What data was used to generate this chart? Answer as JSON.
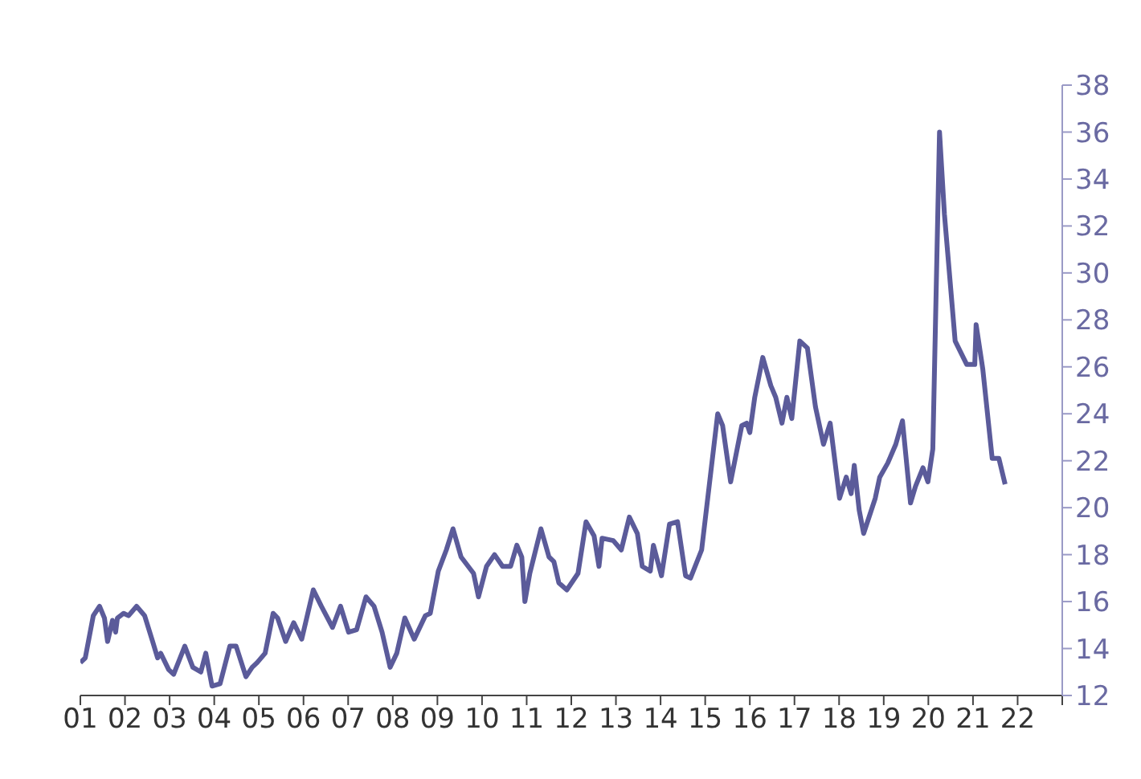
{
  "chart_data": {
    "type": "line",
    "color": "#5b5b9a",
    "x": [
      2001.0,
      2001.11,
      2001.29,
      2001.43,
      2001.54,
      2001.61,
      2001.72,
      2001.79,
      2001.83,
      2001.97,
      2002.08,
      2002.26,
      2002.44,
      2002.62,
      2002.73,
      2002.8,
      2002.98,
      2003.09,
      2003.34,
      2003.52,
      2003.7,
      2003.81,
      2003.95,
      2004.13,
      2004.35,
      2004.49,
      2004.71,
      2004.85,
      2004.96,
      2005.14,
      2005.32,
      2005.42,
      2005.6,
      2005.78,
      2005.96,
      2006.22,
      2006.4,
      2006.65,
      2006.83,
      2007.01,
      2007.19,
      2007.4,
      2007.58,
      2007.76,
      2007.94,
      2008.09,
      2008.27,
      2008.48,
      2008.73,
      2008.84,
      2009.02,
      2009.2,
      2009.35,
      2009.53,
      2009.81,
      2009.92,
      2010.1,
      2010.28,
      2010.46,
      2010.64,
      2010.78,
      2010.89,
      2010.96,
      2011.07,
      2011.32,
      2011.5,
      2011.61,
      2011.72,
      2011.9,
      2012.15,
      2012.33,
      2012.51,
      2012.62,
      2012.69,
      2012.94,
      2013.12,
      2013.3,
      2013.48,
      2013.59,
      2013.77,
      2013.84,
      2014.02,
      2014.2,
      2014.38,
      2014.56,
      2014.67,
      2014.92,
      2015.28,
      2015.39,
      2015.57,
      2015.82,
      2015.93,
      2016.0,
      2016.11,
      2016.29,
      2016.47,
      2016.58,
      2016.72,
      2016.83,
      2016.94,
      2017.12,
      2017.29,
      2017.47,
      2017.65,
      2017.8,
      2018.01,
      2018.16,
      2018.27,
      2018.34,
      2018.45,
      2018.55,
      2018.81,
      2018.91,
      2019.09,
      2019.27,
      2019.42,
      2019.6,
      2019.71,
      2019.88,
      2019.99,
      2020.1,
      2020.25,
      2020.36,
      2020.6,
      2020.86,
      2021.04,
      2021.07,
      2021.22,
      2021.43,
      2021.58,
      2021.72
    ],
    "values": [
      13.4,
      13.6,
      15.4,
      15.8,
      15.3,
      14.3,
      15.2,
      14.7,
      15.3,
      15.5,
      15.4,
      15.8,
      15.4,
      14.3,
      13.6,
      13.8,
      13.1,
      12.9,
      14.1,
      13.2,
      13.0,
      13.8,
      12.4,
      12.5,
      14.1,
      14.1,
      12.8,
      13.2,
      13.4,
      13.8,
      15.5,
      15.3,
      14.3,
      15.1,
      14.4,
      16.5,
      15.8,
      14.9,
      15.8,
      14.7,
      14.8,
      16.2,
      15.8,
      14.7,
      13.2,
      13.8,
      15.3,
      14.4,
      15.4,
      15.5,
      17.3,
      18.2,
      19.1,
      17.9,
      17.2,
      16.2,
      17.5,
      18.0,
      17.5,
      17.5,
      18.4,
      17.9,
      16.0,
      17.2,
      19.1,
      17.9,
      17.7,
      16.8,
      16.5,
      17.2,
      19.4,
      18.8,
      17.5,
      18.7,
      18.6,
      18.2,
      19.6,
      18.9,
      17.5,
      17.3,
      18.4,
      17.1,
      19.3,
      19.4,
      17.1,
      17.0,
      18.2,
      24.0,
      23.5,
      21.1,
      23.5,
      23.6,
      23.2,
      24.7,
      26.4,
      25.2,
      24.7,
      23.6,
      24.7,
      23.8,
      27.1,
      26.8,
      24.3,
      22.7,
      23.6,
      20.4,
      21.3,
      20.6,
      21.8,
      19.9,
      18.9,
      20.4,
      21.3,
      21.9,
      22.7,
      23.7,
      20.2,
      20.9,
      21.7,
      21.1,
      22.5,
      36.0,
      32.5,
      27.1,
      26.1,
      26.1,
      27.8,
      25.9,
      22.1,
      22.1,
      21.0
    ],
    "xlim": [
      2001,
      2023
    ],
    "xticks": [
      {
        "value": 2001,
        "label": "01"
      },
      {
        "value": 2002,
        "label": "02"
      },
      {
        "value": 2003,
        "label": "03"
      },
      {
        "value": 2004,
        "label": "04"
      },
      {
        "value": 2005,
        "label": "05"
      },
      {
        "value": 2006,
        "label": "06"
      },
      {
        "value": 2007,
        "label": "07"
      },
      {
        "value": 2008,
        "label": "08"
      },
      {
        "value": 2009,
        "label": "09"
      },
      {
        "value": 2010,
        "label": "10"
      },
      {
        "value": 2011,
        "label": "11"
      },
      {
        "value": 2012,
        "label": "12"
      },
      {
        "value": 2013,
        "label": "13"
      },
      {
        "value": 2014,
        "label": "14"
      },
      {
        "value": 2015,
        "label": "15"
      },
      {
        "value": 2016,
        "label": "16"
      },
      {
        "value": 2017,
        "label": "17"
      },
      {
        "value": 2018,
        "label": "18"
      },
      {
        "value": 2019,
        "label": "19"
      },
      {
        "value": 2020,
        "label": "20"
      },
      {
        "value": 2021,
        "label": "21"
      },
      {
        "value": 2022,
        "label": "22"
      },
      {
        "value": 2023,
        "label": null
      }
    ],
    "ylim": [
      12,
      38
    ],
    "yticks": [
      12,
      14,
      16,
      18,
      20,
      22,
      24,
      26,
      28,
      30,
      32,
      34,
      36,
      38
    ]
  }
}
